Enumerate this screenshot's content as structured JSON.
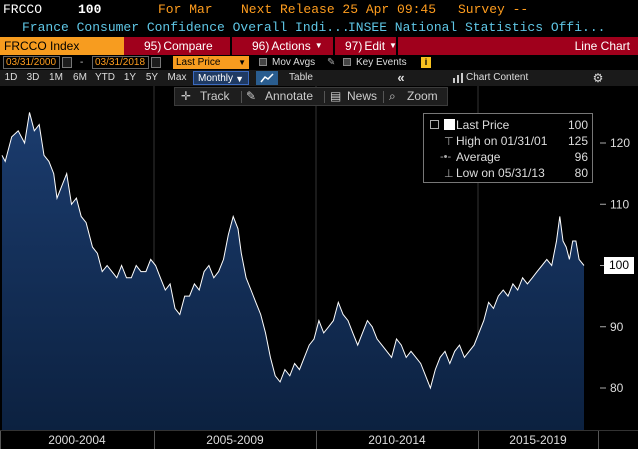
{
  "header": {
    "ticker": "FRCCO",
    "value": "100",
    "for_label": "For Mar",
    "next_release": "Next Release 25 Apr 09:45",
    "survey": "Survey --",
    "description": "France Consumer Confidence Overall Indi...",
    "source": "INSEE National Statistics Offi..."
  },
  "toolbar": {
    "index_label": "FRCCO Index",
    "compare_num": "95)",
    "compare_label": "Compare",
    "actions_num": "96)",
    "actions_label": "Actions",
    "edit_num": "97)",
    "edit_label": "Edit",
    "chart_type": "Line Chart"
  },
  "range_bar": {
    "start_date": "03/31/2000",
    "dash": "-",
    "end_date": "03/31/2018",
    "field": "Last Price",
    "mov_avgs": "Mov Avgs",
    "key_events": "Key Events",
    "info_icon_text": "i"
  },
  "periods": {
    "items": [
      "1D",
      "3D",
      "1M",
      "6M",
      "YTD",
      "1Y",
      "5Y",
      "Max"
    ],
    "frequency": "Monthly",
    "table": "Table",
    "collapse": "«",
    "chart_content": "Chart Content"
  },
  "chart_tools": {
    "track": "Track",
    "annotate": "Annotate",
    "news": "News",
    "zoom": "Zoom"
  },
  "legend": {
    "last_price_label": "Last Price",
    "last_price_value": "100",
    "high_label": "High on 01/31/01",
    "high_value": "125",
    "average_label": "Average",
    "average_value": "96",
    "low_label": "Low on 05/31/13",
    "low_value": "80"
  },
  "last_badge": "100",
  "colors": {
    "orange": "#ff9d1e",
    "cyan": "#5fc7e6",
    "toolbar_red": "#a0001c",
    "index_orange": "#f79c1f",
    "area_top": "#1b3c6e",
    "area_bottom": "#0c2140"
  },
  "chart_data": {
    "type": "area",
    "yticks": [
      80,
      90,
      100,
      110,
      120
    ],
    "ylim": [
      76,
      133
    ],
    "x_groups": [
      "2000-2004",
      "2005-2009",
      "2010-2014",
      "2015-2019"
    ],
    "x_start": 2000.2,
    "x_end": 2018.2,
    "series": [
      {
        "values": [
          [
            2000.2,
            118
          ],
          [
            2000.3,
            117
          ],
          [
            2000.5,
            121
          ],
          [
            2000.7,
            122
          ],
          [
            2000.9,
            120
          ],
          [
            2001.05,
            125
          ],
          [
            2001.2,
            122
          ],
          [
            2001.35,
            123
          ],
          [
            2001.5,
            118
          ],
          [
            2001.65,
            117
          ],
          [
            2001.8,
            115
          ],
          [
            2001.9,
            111
          ],
          [
            2002.05,
            113
          ],
          [
            2002.2,
            115
          ],
          [
            2002.35,
            110
          ],
          [
            2002.5,
            111
          ],
          [
            2002.65,
            108
          ],
          [
            2002.8,
            107
          ],
          [
            2003.0,
            103
          ],
          [
            2003.15,
            102
          ],
          [
            2003.3,
            99
          ],
          [
            2003.45,
            100
          ],
          [
            2003.6,
            99
          ],
          [
            2003.75,
            98
          ],
          [
            2003.9,
            100
          ],
          [
            2004.05,
            98
          ],
          [
            2004.2,
            98
          ],
          [
            2004.35,
            100
          ],
          [
            2004.5,
            99
          ],
          [
            2004.65,
            99
          ],
          [
            2004.8,
            101
          ],
          [
            2004.95,
            100
          ],
          [
            2005.1,
            98
          ],
          [
            2005.25,
            96
          ],
          [
            2005.4,
            97
          ],
          [
            2005.55,
            93
          ],
          [
            2005.7,
            92
          ],
          [
            2005.85,
            95
          ],
          [
            2006.0,
            95
          ],
          [
            2006.15,
            97
          ],
          [
            2006.3,
            96
          ],
          [
            2006.45,
            99
          ],
          [
            2006.6,
            100
          ],
          [
            2006.75,
            98
          ],
          [
            2006.9,
            99
          ],
          [
            2007.05,
            101
          ],
          [
            2007.2,
            105
          ],
          [
            2007.35,
            108
          ],
          [
            2007.5,
            106
          ],
          [
            2007.6,
            102
          ],
          [
            2007.75,
            98
          ],
          [
            2007.9,
            96
          ],
          [
            2008.05,
            94
          ],
          [
            2008.2,
            92
          ],
          [
            2008.35,
            89
          ],
          [
            2008.5,
            85
          ],
          [
            2008.65,
            82
          ],
          [
            2008.8,
            81
          ],
          [
            2008.95,
            83
          ],
          [
            2009.1,
            82
          ],
          [
            2009.25,
            84
          ],
          [
            2009.4,
            83
          ],
          [
            2009.55,
            85
          ],
          [
            2009.7,
            87
          ],
          [
            2009.85,
            88
          ],
          [
            2010.0,
            91
          ],
          [
            2010.15,
            89
          ],
          [
            2010.3,
            90
          ],
          [
            2010.45,
            91
          ],
          [
            2010.6,
            94
          ],
          [
            2010.75,
            92
          ],
          [
            2010.9,
            91
          ],
          [
            2011.05,
            89
          ],
          [
            2011.2,
            87
          ],
          [
            2011.35,
            89
          ],
          [
            2011.5,
            91
          ],
          [
            2011.65,
            90
          ],
          [
            2011.8,
            88
          ],
          [
            2011.95,
            87
          ],
          [
            2012.1,
            86
          ],
          [
            2012.25,
            85
          ],
          [
            2012.4,
            88
          ],
          [
            2012.55,
            87
          ],
          [
            2012.7,
            85
          ],
          [
            2012.85,
            86
          ],
          [
            2013.0,
            85
          ],
          [
            2013.15,
            84
          ],
          [
            2013.3,
            82
          ],
          [
            2013.45,
            80
          ],
          [
            2013.6,
            83
          ],
          [
            2013.75,
            85
          ],
          [
            2013.9,
            86
          ],
          [
            2014.05,
            84
          ],
          [
            2014.2,
            86
          ],
          [
            2014.35,
            87
          ],
          [
            2014.5,
            85
          ],
          [
            2014.65,
            86
          ],
          [
            2014.8,
            87
          ],
          [
            2014.95,
            89
          ],
          [
            2015.1,
            91
          ],
          [
            2015.25,
            94
          ],
          [
            2015.4,
            93
          ],
          [
            2015.55,
            95
          ],
          [
            2015.7,
            96
          ],
          [
            2015.85,
            95
          ],
          [
            2016.0,
            97
          ],
          [
            2016.15,
            96
          ],
          [
            2016.3,
            98
          ],
          [
            2016.45,
            97
          ],
          [
            2016.6,
            98
          ],
          [
            2016.75,
            99
          ],
          [
            2016.9,
            100
          ],
          [
            2017.05,
            101
          ],
          [
            2017.2,
            100
          ],
          [
            2017.35,
            104
          ],
          [
            2017.45,
            108
          ],
          [
            2017.55,
            104
          ],
          [
            2017.65,
            103
          ],
          [
            2017.75,
            101
          ],
          [
            2017.85,
            104
          ],
          [
            2017.95,
            104
          ],
          [
            2018.05,
            101
          ],
          [
            2018.2,
            100
          ]
        ]
      }
    ]
  }
}
